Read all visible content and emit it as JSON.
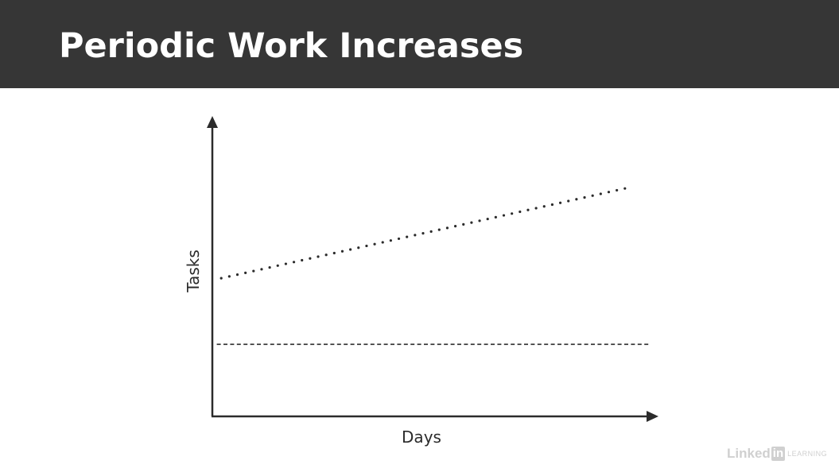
{
  "header": {
    "title": "Periodic Work Increases"
  },
  "colors": {
    "header_bg": "#363636",
    "title_text": "#ffffff",
    "axis": "#2b2b2b",
    "series": "#2b2b2b"
  },
  "chart_data": {
    "type": "line",
    "xlabel": "Days",
    "ylabel": "Tasks",
    "xlim": [
      0,
      100
    ],
    "ylim": [
      0,
      100
    ],
    "grid": false,
    "legend": "none",
    "series": [
      {
        "style": "dotted",
        "x": [
          2,
          93
        ],
        "y": [
          46,
          76
        ]
      },
      {
        "style": "dashed",
        "x": [
          1,
          98
        ],
        "y": [
          24,
          24
        ]
      }
    ]
  },
  "watermark": {
    "linked": "Linked",
    "in": "in",
    "learning": "LEARNING"
  }
}
